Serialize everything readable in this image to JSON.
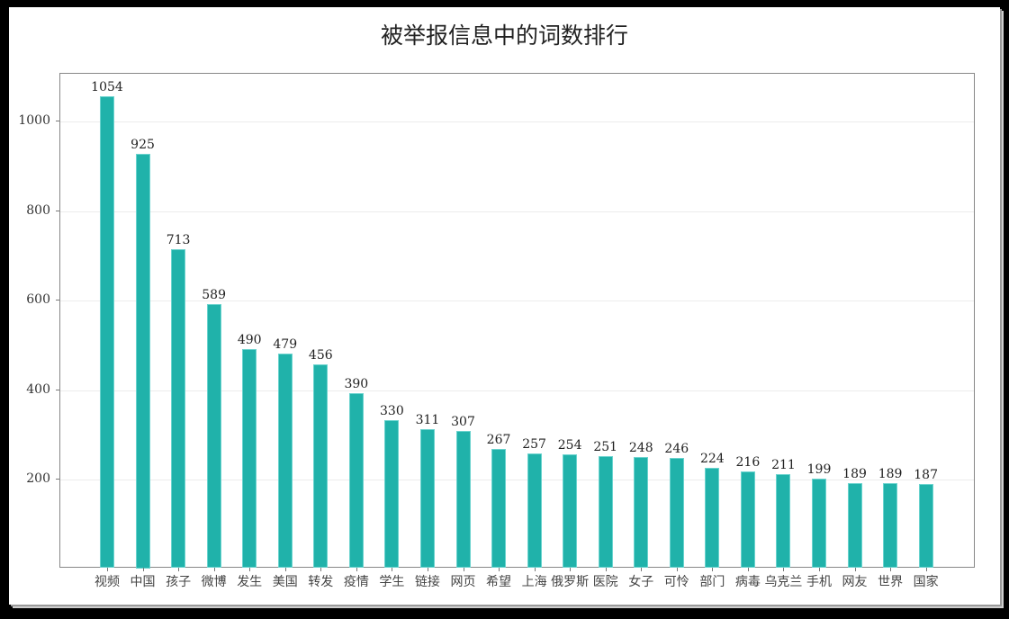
{
  "chart_data": {
    "type": "bar",
    "title": "被举报信息中的词数排行",
    "xlabel": "",
    "ylabel": "",
    "categories": [
      "视频",
      "中国",
      "孩子",
      "微博",
      "发生",
      "美国",
      "转发",
      "疫情",
      "学生",
      "链接",
      "网页",
      "希望",
      "上海",
      "俄罗斯",
      "医院",
      "女子",
      "可怜",
      "部门",
      "病毒",
      "乌克兰",
      "手机",
      "网友",
      "世界",
      "国家"
    ],
    "values": [
      1054,
      925,
      713,
      589,
      490,
      479,
      456,
      390,
      330,
      311,
      307,
      267,
      257,
      254,
      251,
      248,
      246,
      224,
      216,
      211,
      199,
      189,
      189,
      187
    ],
    "yticks": [
      200,
      400,
      600,
      800,
      1000
    ],
    "ylim": [
      0,
      1107
    ],
    "grid": true,
    "legend": null,
    "bar_color": "#20b2aa",
    "data_labels": true
  }
}
